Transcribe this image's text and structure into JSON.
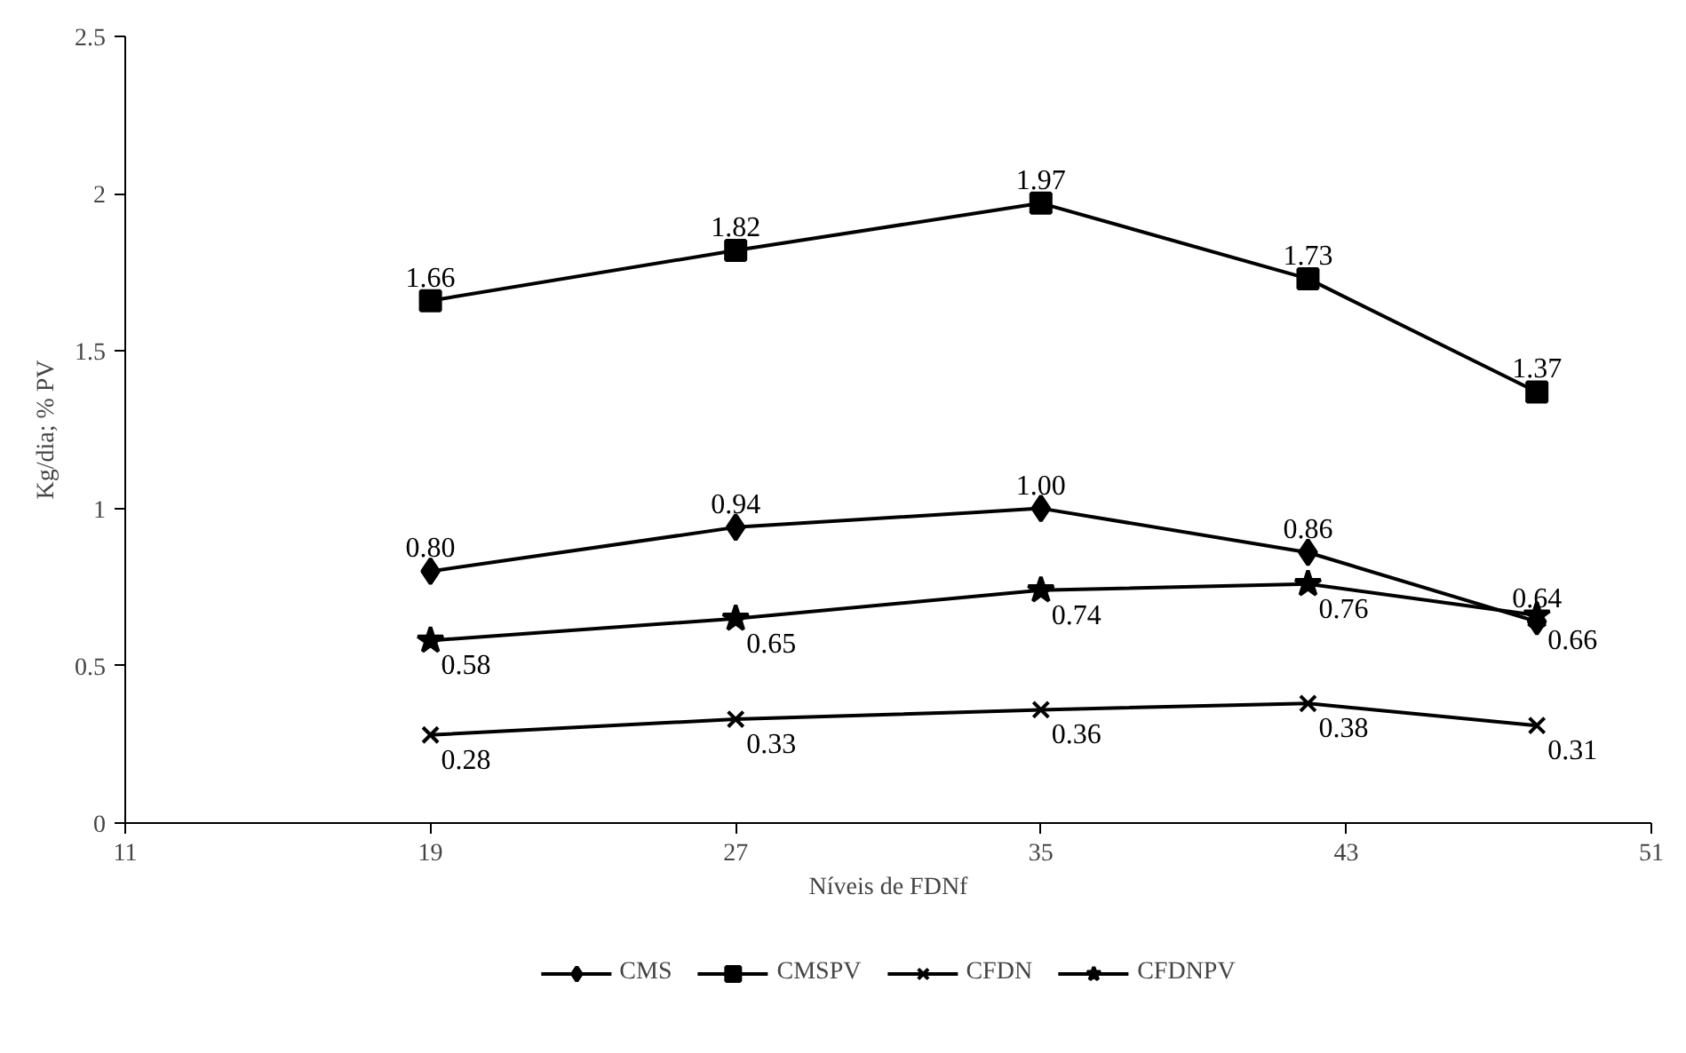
{
  "chart_data": {
    "type": "line",
    "xlabel": "Níveis de FDNf",
    "ylabel": "Kg/dia; % PV",
    "x": [
      19,
      27,
      35,
      42,
      48
    ],
    "series": [
      {
        "name": "CMS",
        "color": "#000000",
        "marker": "diamond",
        "values": [
          0.8,
          0.94,
          1.0,
          0.86,
          0.64
        ],
        "value_labels": [
          "0.80",
          "0.94",
          "1.00",
          "0.86",
          "0.64"
        ]
      },
      {
        "name": "CMSPV",
        "color": "#000000",
        "marker": "square",
        "values": [
          1.66,
          1.82,
          1.97,
          1.73,
          1.37
        ],
        "value_labels": [
          "1.66",
          "1.82",
          "1.97",
          "1.73",
          "1.37"
        ]
      },
      {
        "name": "CFDN",
        "color": "#000000",
        "marker": "cross",
        "values": [
          0.28,
          0.33,
          0.36,
          0.38,
          0.31
        ],
        "value_labels": [
          "0.28",
          "0.33",
          "0.36",
          "0.38",
          "0.31"
        ]
      },
      {
        "name": "CFDNPV",
        "color": "#000000",
        "marker": "star",
        "values": [
          0.58,
          0.65,
          0.74,
          0.76,
          0.66
        ],
        "value_labels": [
          "0.58",
          "0.65",
          "0.74",
          "0.76",
          "0.66"
        ]
      }
    ],
    "xlim": [
      11,
      51
    ],
    "xticks": [
      11,
      19,
      27,
      35,
      43,
      51
    ],
    "ylim": [
      0,
      2.5
    ],
    "yticks": [
      0,
      0.5,
      1,
      1.5,
      2,
      2.5
    ],
    "grid": false,
    "legend": "bottom",
    "line_style": "solid"
  }
}
